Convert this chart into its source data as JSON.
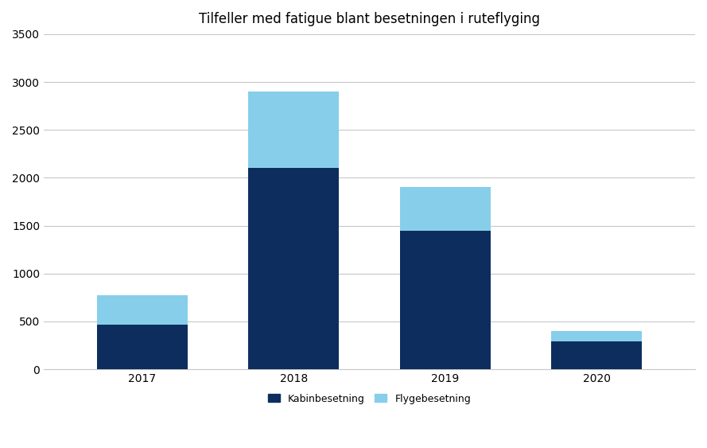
{
  "categories": [
    "2017",
    "2018",
    "2019",
    "2020"
  ],
  "kabinbesetning": [
    470,
    2100,
    1450,
    290
  ],
  "flygebesetning": [
    305,
    800,
    450,
    110
  ],
  "kabinbesetning_color": "#0d2d5e",
  "flygebesetning_color": "#87ceeb",
  "title": "Tilfeller med fatigue blant besetningen i ruteflyging",
  "legend_kabinbesetning": "Kabinbesetning",
  "legend_flygebesetning": "Flygebesetning",
  "ylim": [
    0,
    3500
  ],
  "yticks": [
    0,
    500,
    1000,
    1500,
    2000,
    2500,
    3000,
    3500
  ],
  "bar_width": 0.6,
  "background_color": "#ffffff",
  "grid_color": "#c8c8c8",
  "title_fontsize": 12,
  "tick_fontsize": 10,
  "legend_fontsize": 9
}
